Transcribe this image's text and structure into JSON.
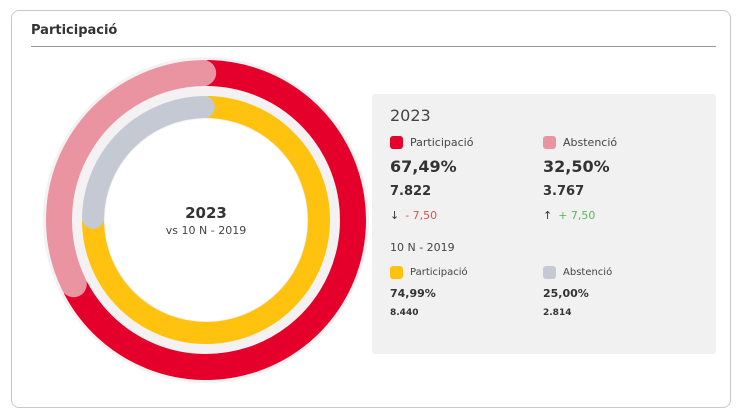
{
  "card": {
    "title": "Participació"
  },
  "chart_data": {
    "type": "pie",
    "center": {
      "year": "2023",
      "subtitle": "vs 10 N - 2019"
    },
    "rings": [
      {
        "name": "2023",
        "slices": [
          {
            "label": "Participació",
            "value": 67.49,
            "color": "#e4002b"
          },
          {
            "label": "Abstenció",
            "value": 32.5,
            "color": "#eb94a1"
          }
        ]
      },
      {
        "name": "10 N - 2019",
        "slices": [
          {
            "label": "Participació",
            "value": 74.99,
            "color": "#ffc20e"
          },
          {
            "label": "Abstenció",
            "value": 25.0,
            "color": "#c5c9d3"
          }
        ]
      }
    ]
  },
  "panel": {
    "year": "2023",
    "current": {
      "participacio": {
        "label": "Participació",
        "pct": "67,49%",
        "count": "7.822",
        "delta": "- 7,50",
        "delta_arrow": "↓",
        "delta_color": "#d9534f",
        "color": "#e4002b"
      },
      "abstencio": {
        "label": "Abstenció",
        "pct": "32,50%",
        "count": "3.767",
        "delta": "+ 7,50",
        "delta_arrow": "↑",
        "delta_color": "#5cb85c",
        "color": "#eb94a1"
      }
    },
    "previous_label": "10 N - 2019",
    "previous": {
      "participacio": {
        "label": "Participació",
        "pct": "74,99%",
        "count": "8.440",
        "color": "#ffc20e"
      },
      "abstencio": {
        "label": "Abstenció",
        "pct": "25,00%",
        "count": "2.814",
        "color": "#c5c9d3"
      }
    }
  }
}
